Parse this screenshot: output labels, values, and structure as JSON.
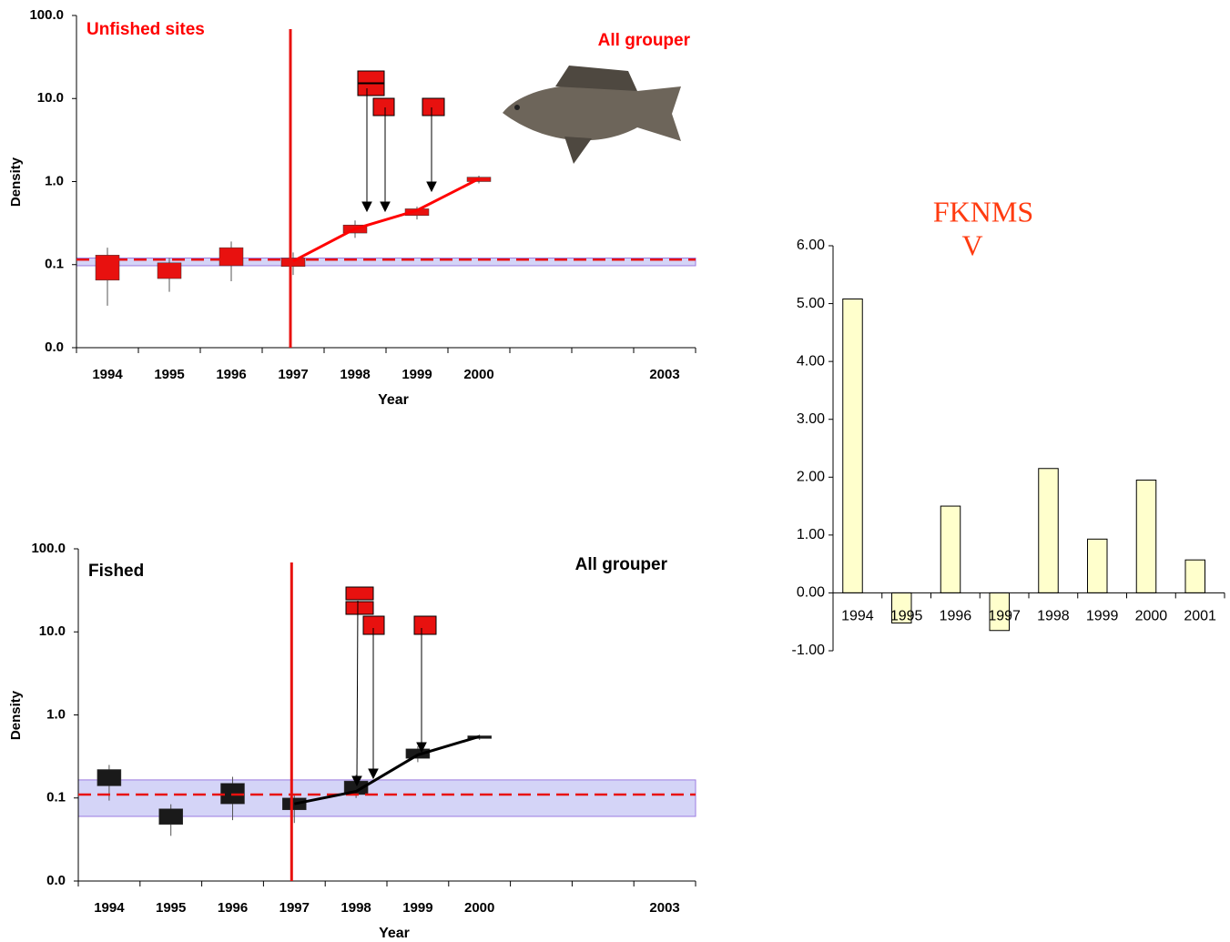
{
  "chart_data": [
    {
      "type": "box",
      "title": "Unfished sites",
      "subtitle": "All grouper",
      "y_label": "Density",
      "x_label": "Year",
      "yscale": "log",
      "ylim": [
        0.01,
        100
      ],
      "yticks": [
        {
          "value": 100,
          "label": "100.0"
        },
        {
          "value": 10,
          "label": "10.0"
        },
        {
          "value": 1,
          "label": "1.0"
        },
        {
          "value": 0.1,
          "label": "0.1"
        },
        {
          "value": 0.01,
          "label": "0.0"
        }
      ],
      "xlim": [
        1993.5,
        2003.5
      ],
      "xticks": [
        1994,
        1995,
        1996,
        1997,
        1998,
        1999,
        2000,
        2003
      ],
      "boxes": {
        "x": [
          1994,
          1995,
          1996,
          1997,
          1998,
          1999,
          2000
        ],
        "low": [
          0.032,
          0.047,
          0.063,
          0.075,
          0.21,
          0.35,
          0.95
        ],
        "q1": [
          0.065,
          0.068,
          0.097,
          0.095,
          0.24,
          0.39,
          1.0
        ],
        "q3": [
          0.13,
          0.105,
          0.16,
          0.12,
          0.3,
          0.47,
          1.13
        ],
        "high": [
          0.16,
          0.12,
          0.19,
          0.14,
          0.34,
          0.5,
          1.18
        ],
        "color": "#e8110f"
      },
      "line": {
        "x": [
          1997,
          1998,
          1999,
          2000
        ],
        "values": [
          0.11,
          0.27,
          0.45,
          1.08
        ],
        "color": "#ff0000"
      },
      "reference": 0.115,
      "band": [
        0.097,
        0.12
      ],
      "event_x": 1997
    },
    {
      "type": "box",
      "title": "Fished",
      "subtitle": "All grouper",
      "y_label": "Density",
      "x_label": "Year",
      "yscale": "log",
      "ylim": [
        0.01,
        100
      ],
      "yticks": [
        {
          "value": 100,
          "label": "100.0"
        },
        {
          "value": 10,
          "label": "10.0"
        },
        {
          "value": 1,
          "label": "1.0"
        },
        {
          "value": 0.1,
          "label": "0.1"
        },
        {
          "value": 0.01,
          "label": "0.0"
        }
      ],
      "xlim": [
        1993.5,
        2003.5
      ],
      "xticks": [
        1994,
        1995,
        1996,
        1997,
        1998,
        1999,
        2000,
        2003
      ],
      "boxes": {
        "x": [
          1994,
          1995,
          1996,
          1997,
          1998,
          1999,
          2000
        ],
        "low": [
          0.093,
          0.035,
          0.054,
          0.05,
          0.1,
          0.27,
          0.5
        ],
        "q1": [
          0.14,
          0.048,
          0.085,
          0.072,
          0.11,
          0.3,
          0.52
        ],
        "q3": [
          0.22,
          0.074,
          0.15,
          0.1,
          0.16,
          0.39,
          0.56
        ],
        "high": [
          0.25,
          0.084,
          0.18,
          0.11,
          0.19,
          0.42,
          0.58
        ],
        "color": "#1a1a1a"
      },
      "line": {
        "x": [
          1997,
          1998,
          1999,
          2000
        ],
        "values": [
          0.085,
          0.12,
          0.33,
          0.55
        ],
        "color": "#000000"
      },
      "reference": 0.11,
      "band": [
        0.06,
        0.165
      ],
      "event_x": 1997
    },
    {
      "type": "bar",
      "title": "FKNMS",
      "subtitle": "V",
      "categories": [
        "1994",
        "1995",
        "1996",
        "1997",
        "1998",
        "1999",
        "2000",
        "2001"
      ],
      "values": [
        5.08,
        -0.52,
        1.5,
        -0.65,
        2.15,
        0.93,
        1.95,
        0.57
      ],
      "color": "#ffffcc",
      "ylim": [
        -1,
        6
      ],
      "yticks": [
        {
          "value": 6,
          "label": "6.00"
        },
        {
          "value": 5,
          "label": "5.00"
        },
        {
          "value": 4,
          "label": "4.00"
        },
        {
          "value": 3,
          "label": "3.00"
        },
        {
          "value": 2,
          "label": "2.00"
        },
        {
          "value": 1,
          "label": "1.00"
        },
        {
          "value": 0,
          "label": "0.00"
        },
        {
          "value": -1,
          "label": "-1.00"
        }
      ]
    }
  ]
}
